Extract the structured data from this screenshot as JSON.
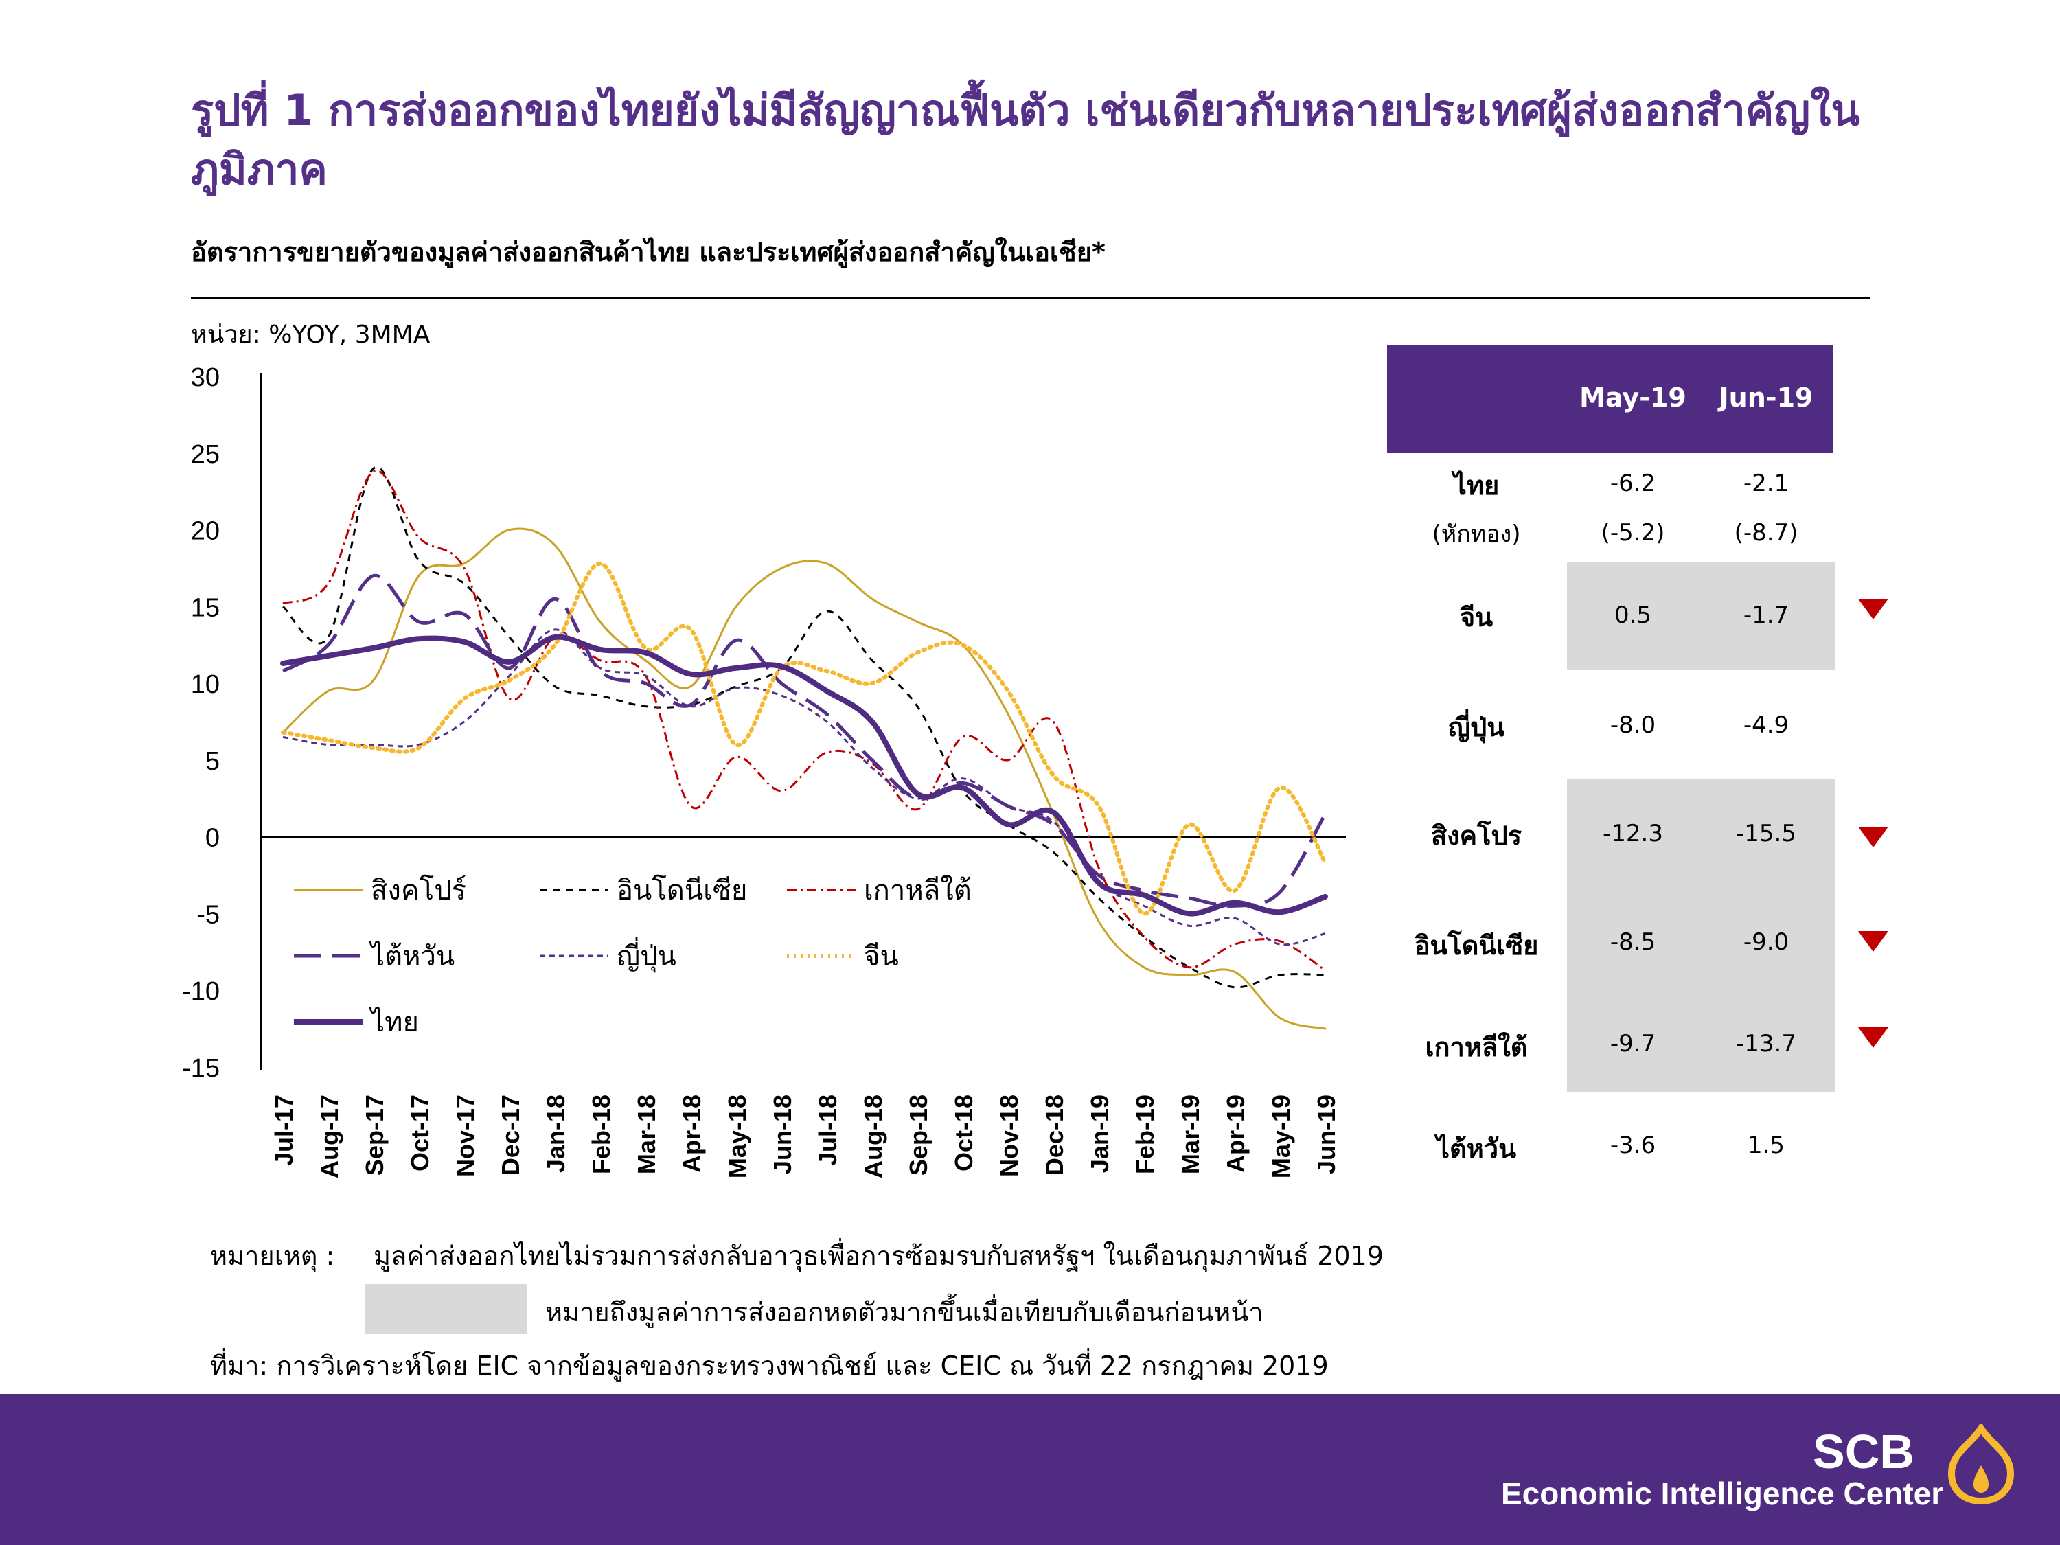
{
  "header": {
    "title": "รูปที่ 1 การส่งออกของไทยยังไม่มีสัญญาณฟื้นตัว เช่นเดียวกับหลายประเทศผู้ส่งออกสำคัญในภูมิภาค",
    "subtitle": "อัตราการขยายตัวของมูลค่าส่งออกสินค้าไทย และประเทศผู้ส่งออกสำคัญในเอเชีย*",
    "unit": "หน่วย: %YOY, 3MMA"
  },
  "chart_data": {
    "type": "line",
    "title": "อัตราการขยายตัวของมูลค่าส่งออกสินค้าไทย และประเทศผู้ส่งออกสำคัญในเอเชีย*",
    "ylabel": "หน่วย: %YOY, 3MMA",
    "xlabel": "",
    "ylim": [
      -15,
      30
    ],
    "yticks": [
      30,
      25,
      20,
      15,
      10,
      5,
      0,
      -5,
      -10,
      -15
    ],
    "grid": false,
    "legend": "inside-bottom-left",
    "categories": [
      "Jul-17",
      "Aug-17",
      "Sep-17",
      "Oct-17",
      "Nov-17",
      "Dec-17",
      "Jan-18",
      "Feb-18",
      "Mar-18",
      "Apr-18",
      "May-18",
      "Jun-18",
      "Jul-18",
      "Aug-18",
      "Sep-18",
      "Oct-18",
      "Nov-18",
      "Dec-18",
      "Jan-19",
      "Feb-19",
      "Mar-19",
      "Apr-19",
      "May-19",
      "Jun-19"
    ],
    "series": [
      {
        "name": "สิงคโปร์",
        "color": "#c9a227",
        "dash": "solid",
        "width": 3,
        "values": [
          6.8,
          9.5,
          10.2,
          17.0,
          17.8,
          20.0,
          19.0,
          14.0,
          11.5,
          9.8,
          15.0,
          17.5,
          17.8,
          15.5,
          14.0,
          12.5,
          8.0,
          1.5,
          -5.5,
          -8.5,
          -9.0,
          -8.8,
          -11.8,
          -12.5
        ]
      },
      {
        "name": "อินโดนีเซีย",
        "color": "#000000",
        "dash": "10,9",
        "width": 3,
        "values": [
          15.0,
          13.0,
          24.0,
          18.0,
          16.5,
          13.0,
          9.8,
          9.2,
          8.5,
          8.6,
          9.8,
          11.0,
          14.7,
          11.5,
          8.5,
          3.0,
          0.8,
          -1.0,
          -4.0,
          -6.5,
          -8.5,
          -9.8,
          -9.0,
          -9.0
        ]
      },
      {
        "name": "เกาหลีใต้",
        "color": "#c00000",
        "dash": "14,6,3,6",
        "width": 3,
        "values": [
          15.2,
          16.5,
          23.8,
          19.5,
          17.5,
          9.0,
          13.0,
          11.5,
          10.5,
          2.0,
          5.2,
          3.0,
          5.5,
          4.8,
          1.8,
          6.5,
          5.0,
          7.5,
          -2.0,
          -6.5,
          -8.5,
          -7.0,
          -6.8,
          -8.7
        ]
      },
      {
        "name": "ไต้หวัน",
        "color": "#553088",
        "dash": "40,16",
        "width": 5,
        "values": [
          10.8,
          12.5,
          17.0,
          14.0,
          14.5,
          11.0,
          15.5,
          10.8,
          10.0,
          8.6,
          12.8,
          10.0,
          8.0,
          5.0,
          2.5,
          3.5,
          2.0,
          0.8,
          -2.5,
          -3.5,
          -4.0,
          -4.5,
          -3.6,
          1.5
        ]
      },
      {
        "name": "ญี่ปุ่น",
        "color": "#553088",
        "dash": "8,6",
        "width": 3,
        "values": [
          6.5,
          6.0,
          6.0,
          6.0,
          7.5,
          10.5,
          13.5,
          11.0,
          10.5,
          8.5,
          9.7,
          9.2,
          7.5,
          4.5,
          2.5,
          3.8,
          2.0,
          1.0,
          -3.0,
          -4.5,
          -5.8,
          -5.3,
          -7.0,
          -6.3
        ]
      },
      {
        "name": "จีน",
        "color": "#f5b82e",
        "dash": "3,7",
        "width": 6,
        "values": [
          6.8,
          6.3,
          5.8,
          5.8,
          9.0,
          10.2,
          12.5,
          17.8,
          12.3,
          13.5,
          6.0,
          11.0,
          10.8,
          10.0,
          12.0,
          12.5,
          9.5,
          4.0,
          2.0,
          -5.0,
          0.8,
          -3.5,
          3.2,
          -1.7
        ]
      },
      {
        "name": "ไทย",
        "color": "#4f2c82",
        "dash": "solid",
        "width": 8,
        "values": [
          11.3,
          11.8,
          12.3,
          12.9,
          12.7,
          11.4,
          13.0,
          12.2,
          12.0,
          10.6,
          11.0,
          11.1,
          9.5,
          7.5,
          2.8,
          3.2,
          0.8,
          1.6,
          -3.0,
          -3.8,
          -5.0,
          -4.3,
          -4.9,
          -3.9
        ]
      }
    ]
  },
  "table": {
    "headers": [
      "May-19",
      "Jun-19"
    ],
    "rows": [
      {
        "country": "ไทย",
        "sub": "(หักทอง)",
        "may": "-6.2",
        "jun": "-2.1",
        "may_sub": "(-5.2)",
        "jun_sub": "(-8.7)"
      },
      {
        "country": "จีน",
        "may": "0.5",
        "jun": "-1.7"
      },
      {
        "country": "ญี่ปุ่น",
        "may": "-8.0",
        "jun": "-4.9"
      },
      {
        "country": "สิงคโปร",
        "may": "-12.3",
        "jun": "-15.5"
      },
      {
        "country": "อินโดนีเซีย",
        "may": "-8.5",
        "jun": "-9.0"
      },
      {
        "country": "เกาหลีใต้",
        "may": "-9.7",
        "jun": "-13.7"
      },
      {
        "country": "ไต้หวัน",
        "may": "-3.6",
        "jun": "1.5"
      }
    ]
  },
  "notes": {
    "note_label": "หมายเหตุ :",
    "note_text": "มูลค่าส่งออกไทยไม่รวมการส่งกลับอาวุธเพื่อการซ้อมรบกับสหรัฐฯ ในเดือนกุมภาพันธ์ 2019",
    "shade_text": "หมายถึงมูลค่าการส่งออกหดตัวมากขึ้นเมื่อเทียบกับเดือนก่อนหน้า",
    "source": "ที่มา: การวิเคราะห์โดย EIC จากข้อมูลของกระทรวงพาณิชย์ และ CEIC ณ วันที่ 22 กรกฎาคม 2019"
  },
  "footer": {
    "brand": "SCB",
    "center": "Economic Intelligence Center",
    "brand_color": "#4f2c82",
    "accent_color": "#f5b82e"
  }
}
